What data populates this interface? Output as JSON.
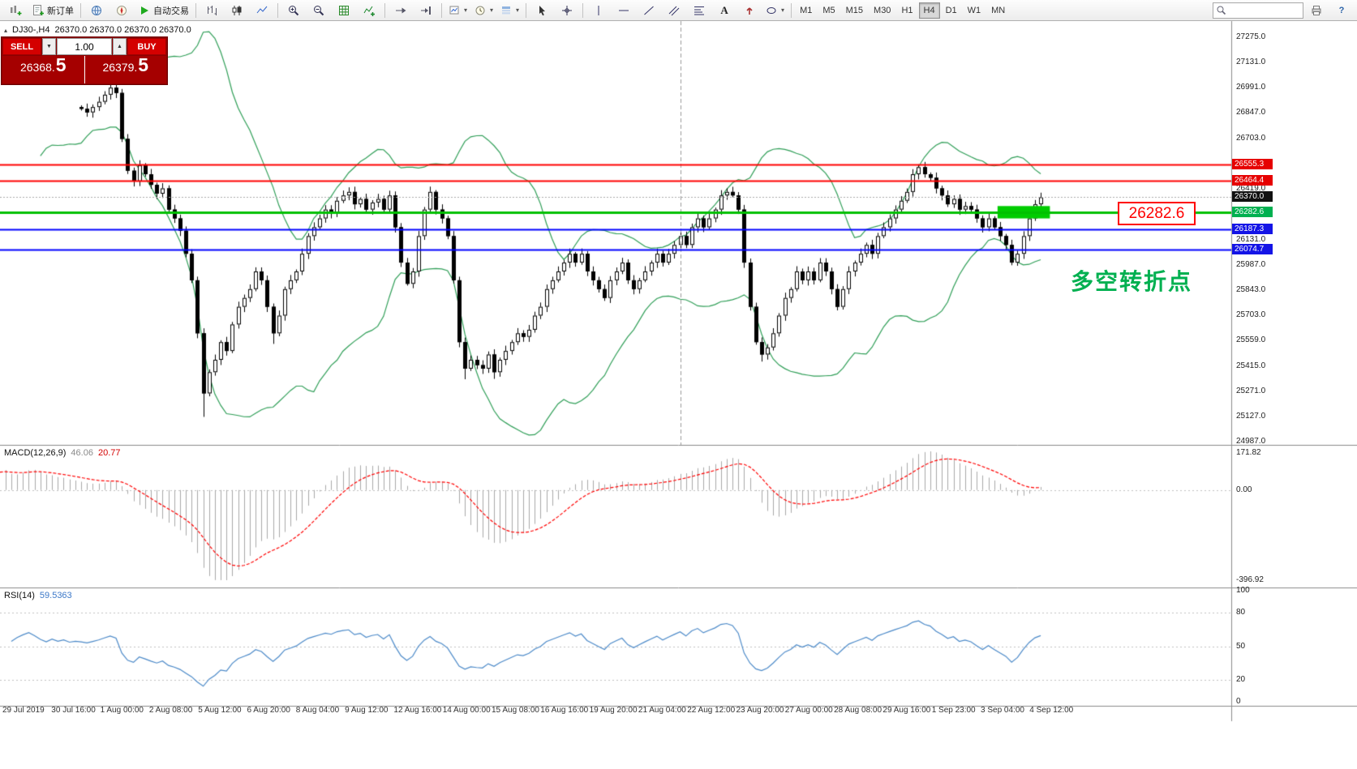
{
  "toolbar": {
    "new_order_label": "新订单",
    "autotrade_label": "自动交易",
    "timeframes": [
      "M1",
      "M5",
      "M15",
      "M30",
      "H1",
      "H4",
      "D1",
      "W1",
      "MN"
    ],
    "active_timeframe": "H4",
    "text_tool_label": "A",
    "help_label": "?"
  },
  "trade_panel": {
    "sell_label": "SELL",
    "buy_label": "BUY",
    "volume": "1.00",
    "sell_main": "26368.",
    "sell_frac": "5",
    "buy_main": "26379.",
    "buy_frac": "5",
    "spin_down": "▼",
    "spin_up": "▲"
  },
  "chart": {
    "symbol_name": "DJ30-,H4",
    "symbol_ohlc": "26370.0 26370.0 26370.0 26370.0",
    "annotation_price": "26282.6",
    "annotation_text": "多空转折点",
    "price_axis_plain": [
      {
        "text": "27275.0",
        "price": 27275.0
      },
      {
        "text": "27131.0",
        "price": 27131.0
      },
      {
        "text": "26991.0",
        "price": 26991.0
      },
      {
        "text": "26847.0",
        "price": 26847.0
      },
      {
        "text": "26703.0",
        "price": 26703.0
      },
      {
        "text": "26419.0",
        "price": 26419.0
      },
      {
        "text": "26131.0",
        "price": 26131.0
      },
      {
        "text": "25987.0",
        "price": 25987.0
      },
      {
        "text": "25843.0",
        "price": 25843.0
      },
      {
        "text": "25703.0",
        "price": 25703.0
      },
      {
        "text": "25559.0",
        "price": 25559.0
      },
      {
        "text": "25415.0",
        "price": 25415.0
      },
      {
        "text": "25271.0",
        "price": 25271.0
      },
      {
        "text": "25127.0",
        "price": 25127.0
      },
      {
        "text": "24987.0",
        "price": 24987.0
      }
    ],
    "price_axis_tags": [
      {
        "text": "26555.3",
        "price": 26555.3,
        "color": "#e60000"
      },
      {
        "text": "26464.4",
        "price": 26464.4,
        "color": "#e60000"
      },
      {
        "text": "26370.0",
        "price": 26370.0,
        "color": "#111111"
      },
      {
        "text": "26282.6",
        "price": 26282.6,
        "color": "#00b050"
      },
      {
        "text": "26187.3",
        "price": 26187.3,
        "color": "#1414e6"
      },
      {
        "text": "26074.7",
        "price": 26074.7,
        "color": "#1414e6"
      }
    ]
  },
  "macd": {
    "label": "MACD(12,26,9)",
    "value_main": "46.06",
    "value_signal": "20.77",
    "axis_labels": [
      "171.82",
      "0.00",
      "-396.92"
    ]
  },
  "rsi": {
    "label": "RSI(14)",
    "value": "59.5363",
    "axis_labels": [
      {
        "text": "100",
        "value": 100
      },
      {
        "text": "80",
        "value": 80
      },
      {
        "text": "50",
        "value": 50
      },
      {
        "text": "20",
        "value": 20
      },
      {
        "text": "0",
        "value": 0
      }
    ],
    "levels": [
      80,
      50,
      20
    ]
  },
  "time_axis": [
    "29 Jul 2019",
    "30 Jul 16:00",
    "1 Aug 00:00",
    "2 Aug 08:00",
    "5 Aug 12:00",
    "6 Aug 20:00",
    "8 Aug 04:00",
    "9 Aug 12:00",
    "12 Aug 16:00",
    "14 Aug 00:00",
    "15 Aug 08:00",
    "16 Aug 16:00",
    "19 Aug 20:00",
    "21 Aug 04:00",
    "22 Aug 12:00",
    "23 Aug 20:00",
    "27 Aug 00:00",
    "28 Aug 08:00",
    "29 Aug 16:00",
    "1 Sep 23:00",
    "3 Sep 04:00",
    "4 Sep 12:00"
  ],
  "chart_data": {
    "type": "candlestick",
    "symbol": "DJ30-",
    "timeframe": "H4",
    "price_axis_range": {
      "min": 24987.0,
      "max": 27275.0
    },
    "warmup_closes": [
      26600,
      26750,
      26900,
      27050,
      27100,
      26950,
      26800,
      26650,
      26700,
      26850,
      27000,
      27080,
      26950,
      26820,
      26750,
      26880,
      26980,
      27060,
      26990,
      26900,
      26840,
      26920,
      26870,
      26910,
      26860,
      26880
    ],
    "closes": [
      26870,
      26850,
      26880,
      26910,
      26950,
      26990,
      26960,
      26700,
      26520,
      26460,
      26550,
      26500,
      26440,
      26390,
      26420,
      26300,
      26250,
      26180,
      26050,
      25900,
      25600,
      25260,
      25380,
      25450,
      25550,
      25500,
      25650,
      25750,
      25800,
      25850,
      25950,
      25900,
      25750,
      25600,
      25700,
      25850,
      25900,
      25950,
      26050,
      26150,
      26200,
      26250,
      26300,
      26280,
      26350,
      26380,
      26400,
      26330,
      26360,
      26300,
      26340,
      26360,
      26300,
      26380,
      26200,
      26000,
      25880,
      25950,
      26150,
      26300,
      26400,
      26300,
      26250,
      26150,
      25900,
      25550,
      25400,
      25450,
      25420,
      25400,
      25480,
      25380,
      25450,
      25500,
      25550,
      25600,
      25580,
      25620,
      25700,
      25750,
      25850,
      25900,
      25950,
      26000,
      26050,
      26000,
      26050,
      25950,
      25900,
      25850,
      25800,
      25900,
      25950,
      26000,
      25900,
      25850,
      25900,
      25950,
      26000,
      26050,
      26000,
      26050,
      26100,
      26150,
      26100,
      26200,
      26250,
      26200,
      26250,
      26300,
      26380,
      26400,
      26380,
      26300,
      26000,
      25750,
      25550,
      25480,
      25520,
      25600,
      25700,
      25800,
      25850,
      25950,
      25900,
      25950,
      25900,
      26000,
      25950,
      25850,
      25750,
      25850,
      25950,
      26000,
      26050,
      26100,
      26050,
      26150,
      26200,
      26250,
      26300,
      26350,
      26400,
      26500,
      26540,
      26500,
      26480,
      26420,
      26380,
      26330,
      26360,
      26300,
      26320,
      26300,
      26250,
      26200,
      26250,
      26200,
      26150,
      26100,
      26000,
      26050,
      26150,
      26250,
      26330,
      26370
    ],
    "wick_overrides": {
      "5": {
        "high": 27040
      },
      "6": {
        "high": 27048
      },
      "21": {
        "low": 25127
      },
      "33": {
        "low": 25540
      },
      "46": {
        "high": 26426
      },
      "66": {
        "low": 25340
      },
      "71": {
        "low": 25342
      },
      "111": {
        "high": 26420
      },
      "117": {
        "low": 25440
      },
      "144": {
        "high": 26556
      },
      "160": {
        "low": 25985
      }
    },
    "hlines": [
      {
        "price": 26555.3,
        "color": "#ff0000",
        "width": 2
      },
      {
        "price": 26464.4,
        "color": "#ff0000",
        "width": 2
      },
      {
        "price": 26282.6,
        "color": "#00c000",
        "width": 3
      },
      {
        "price": 26187.3,
        "color": "#0000ff",
        "width": 2
      },
      {
        "price": 26074.7,
        "color": "#0000ff",
        "width": 2
      }
    ],
    "bid_line": {
      "price": 26370.0,
      "color": "#aaaaaa"
    },
    "highlight_rect": {
      "start_index": 158,
      "end_index": 167,
      "price_top": 26320,
      "price_bottom": 26250,
      "color": "#00cc00"
    },
    "vline_index": 103,
    "indicators": {
      "bollinger": {
        "period": 20,
        "deviation": 2,
        "color": "#2f9e57"
      },
      "macd": {
        "fast": 12,
        "slow": 26,
        "signal": 9,
        "hist_color": "#a8a8a8",
        "signal_color": "#ff0000",
        "range_labels": [
          171.82,
          0.0,
          -396.92
        ]
      },
      "rsi": {
        "period": 14,
        "color": "#4b89c8",
        "current": 59.5363
      }
    },
    "candle_colors": {
      "bull_fill": "#ffffff",
      "bear_fill": "#000000",
      "outline": "#000000"
    }
  }
}
